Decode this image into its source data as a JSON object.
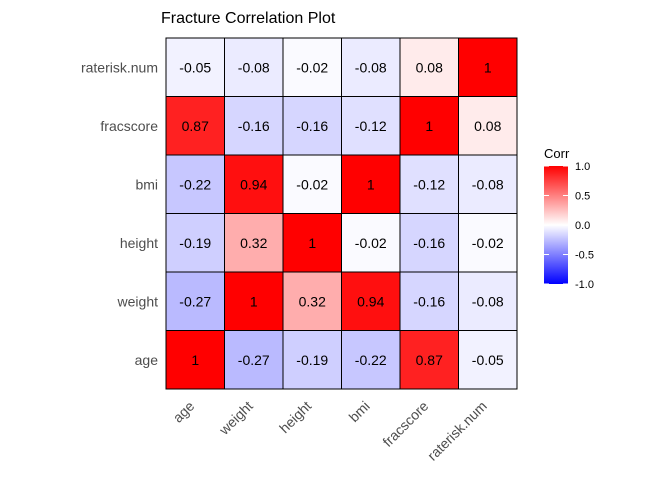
{
  "chart_data": {
    "type": "heatmap",
    "title": "Fracture Correlation Plot",
    "x_categories": [
      "age",
      "weight",
      "height",
      "bmi",
      "fracscore",
      "raterisk.num"
    ],
    "y_categories": [
      "age",
      "weight",
      "height",
      "bmi",
      "fracscore",
      "raterisk.num"
    ],
    "values": [
      [
        1,
        -0.27,
        -0.19,
        -0.22,
        0.87,
        -0.05
      ],
      [
        -0.27,
        1,
        0.32,
        0.94,
        -0.16,
        -0.08
      ],
      [
        -0.19,
        0.32,
        1,
        -0.02,
        -0.16,
        -0.02
      ],
      [
        -0.22,
        0.94,
        -0.02,
        1,
        -0.12,
        -0.08
      ],
      [
        0.87,
        -0.16,
        -0.16,
        -0.12,
        1,
        0.08
      ],
      [
        -0.05,
        -0.08,
        -0.02,
        -0.08,
        0.08,
        1
      ]
    ],
    "value_labels": [
      [
        "1",
        "-0.27",
        "-0.19",
        "-0.22",
        "0.87",
        "-0.05"
      ],
      [
        "-0.27",
        "1",
        "0.32",
        "0.94",
        "-0.16",
        "-0.08"
      ],
      [
        "-0.19",
        "0.32",
        "1",
        "-0.02",
        "-0.16",
        "-0.02"
      ],
      [
        "-0.22",
        "0.94",
        "-0.02",
        "1",
        "-0.12",
        "-0.08"
      ],
      [
        "0.87",
        "-0.16",
        "-0.16",
        "-0.12",
        "1",
        "0.08"
      ],
      [
        "-0.05",
        "-0.08",
        "-0.02",
        "-0.08",
        "0.08",
        "1"
      ]
    ],
    "legend": {
      "title": "Corr",
      "ticks": [
        1.0,
        0.5,
        0.0,
        -0.5,
        -1.0
      ],
      "tick_labels": [
        "1.0",
        "0.5",
        "0.0",
        "-0.5",
        "-1.0"
      ],
      "placement": "right"
    },
    "color_scale": {
      "low": "#0000ff",
      "mid": "#ffffff",
      "high": "#ff0000",
      "domain": [
        -1,
        1
      ]
    },
    "grid": false
  }
}
